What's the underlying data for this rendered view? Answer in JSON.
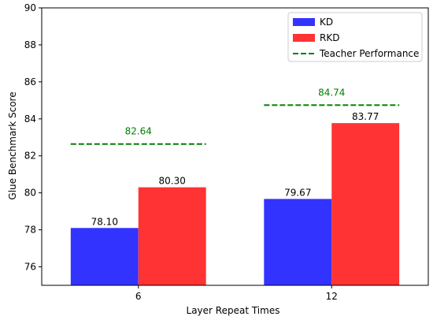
{
  "chart_data": {
    "type": "bar",
    "categories": [
      "6",
      "12"
    ],
    "series": [
      {
        "name": "KD",
        "values": [
          78.1,
          79.67
        ],
        "labels": [
          "78.10",
          "79.67"
        ],
        "color": "#3333ff"
      },
      {
        "name": "RKD",
        "values": [
          80.3,
          83.77
        ],
        "labels": [
          "80.30",
          "83.77"
        ],
        "color": "#ff3333"
      }
    ],
    "teacher": {
      "name": "Teacher Performance",
      "values": [
        82.64,
        84.74
      ],
      "labels": [
        "82.64",
        "84.74"
      ],
      "color": "#008000",
      "style": "dashed"
    },
    "xlabel": "Layer Repeat Times",
    "ylabel": "Glue Benchmark Score",
    "ylim": [
      75,
      90
    ],
    "yticks": [
      "76",
      "78",
      "80",
      "82",
      "84",
      "86",
      "88",
      "90"
    ],
    "grid": false,
    "legend_position": "top-right"
  }
}
